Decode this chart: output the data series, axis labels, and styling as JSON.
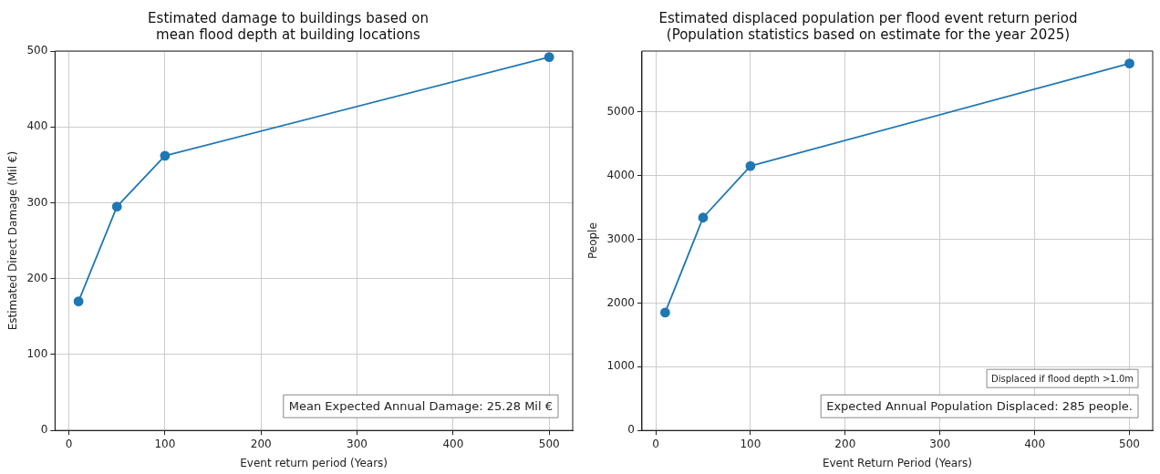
{
  "chart_data": [
    {
      "type": "line",
      "title": "Estimated damage to buildings based on\nmean flood depth at building locations",
      "xlabel": "Event return period (Years)",
      "ylabel": "Estimated Direct Damage (Mil €)",
      "x": [
        10,
        50,
        100,
        500
      ],
      "series": [
        {
          "color": "#1f77b4",
          "values": [
            170,
            295,
            362,
            492
          ]
        }
      ],
      "xlim": [
        -14.5,
        524.5
      ],
      "xticks": [
        0,
        100,
        200,
        300,
        400,
        500
      ],
      "ylim": [
        0,
        500
      ],
      "yticks": [
        0,
        100,
        200,
        300,
        400,
        500
      ],
      "grid": true,
      "marker": "circle",
      "line_style": "solid",
      "annotations": [
        "Mean Expected Annual Damage: 25.28 Mil €"
      ]
    },
    {
      "type": "line",
      "title": "Estimated displaced population per flood event return period\n(Population statistics based on estimate for the year 2025)",
      "xlabel": "Event Return Period (Years)",
      "ylabel": "People",
      "x": [
        10,
        50,
        100,
        500
      ],
      "series": [
        {
          "color": "#1f77b4",
          "values": [
            1850,
            3340,
            4150,
            5760
          ]
        }
      ],
      "xlim": [
        -14.5,
        524.5
      ],
      "xticks": [
        0,
        100,
        200,
        300,
        400,
        500
      ],
      "ylim": [
        0,
        5955
      ],
      "yticks": [
        0,
        1000,
        2000,
        3000,
        4000,
        5000
      ],
      "grid": true,
      "marker": "circle",
      "line_style": "solid",
      "annotations": [
        "Displaced if flood depth >1.0m",
        "Expected Annual Population Displaced: 285 people."
      ]
    }
  ]
}
